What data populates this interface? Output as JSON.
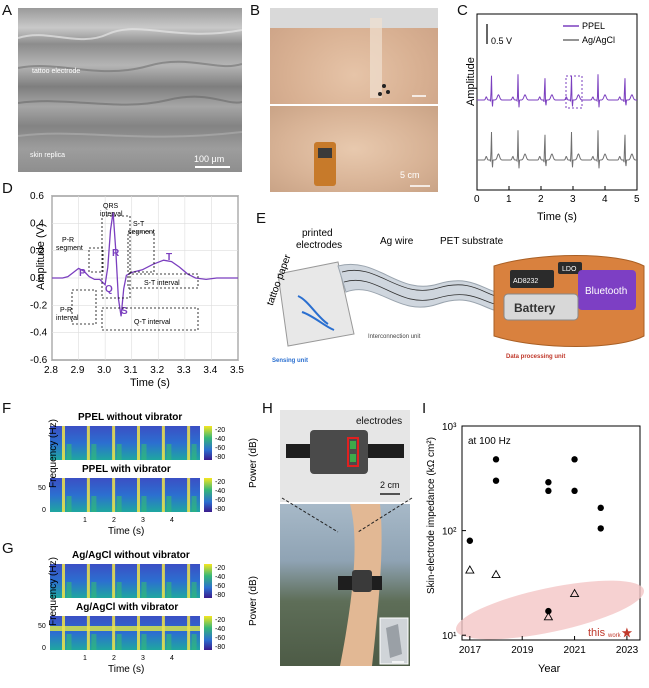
{
  "panels": {
    "A": {
      "label": "A",
      "tattoo_text": "tattoo electrode",
      "skin_text": "skin replica",
      "scale": "100 μm"
    },
    "B": {
      "label": "B",
      "scale": "5 cm"
    },
    "C": {
      "label": "C",
      "scale_text": "0.5 V",
      "ylabel": "Amplitude",
      "xlabel": "Time (s)",
      "legend": [
        "PPEL",
        "Ag/AgCl"
      ],
      "xticks": [
        "0",
        "1",
        "2",
        "3",
        "4",
        "5"
      ]
    },
    "D": {
      "label": "D",
      "ylabel": "Amplitude (V)",
      "xlabel": "Time (s)",
      "xticks": [
        "2.8",
        "2.9",
        "3.0",
        "3.1",
        "3.2",
        "3.3",
        "3.4",
        "3.5"
      ],
      "yticks": [
        "0.6",
        "0.4",
        "0.2",
        "0.0",
        "-0.2",
        "-0.4",
        "-0.6"
      ],
      "wave": {
        "P": "P",
        "Q": "Q",
        "R": "R",
        "S": "S",
        "T": "T"
      },
      "annotations": {
        "qrs1": "QRS",
        "qrs2": "interval",
        "pr1": "P-R",
        "pr2": "segment",
        "st1": "S-T",
        "st2": "segment",
        "stint": "S-T interval",
        "print1": "P-R",
        "print2": "interval",
        "qt": "Q-T interval"
      }
    },
    "E": {
      "label": "E",
      "tattoo_paper": "tattoo paper",
      "printed1": "printed",
      "printed2": "electrodes",
      "ag_wire": "Ag wire",
      "pet": "PET substrate",
      "sensing": "Sensing unit",
      "interconnect": "Interconnection unit",
      "data_unit": "Data processing unit",
      "chip": "AD8232",
      "ldo": "LDO",
      "bluetooth": "Bluetooth",
      "battery": "Battery"
    },
    "F": {
      "label": "F",
      "title1": "PPEL without vibrator",
      "title2": "PPEL with vibrator",
      "ylabel": "Frequency (Hz)",
      "xlabel": "Time (s)",
      "clabel": "Power (dB)",
      "cticks": [
        "-20",
        "-40",
        "-60",
        "-80"
      ],
      "yticks": [
        "50",
        "0"
      ],
      "xticks": [
        "1",
        "2",
        "3",
        "4"
      ]
    },
    "G": {
      "label": "G",
      "title1": "Ag/AgCl without vibrator",
      "title2": "Ag/AgCl with vibrator",
      "ylabel": "Frequency (Hz)",
      "xlabel": "Time (s)",
      "clabel": "Power (dB)",
      "cticks": [
        "-20",
        "-40",
        "-60",
        "-80"
      ],
      "yticks": [
        "50",
        "0"
      ],
      "xticks": [
        "1",
        "2",
        "3",
        "4"
      ]
    },
    "H": {
      "label": "H",
      "electrodes": "electrodes",
      "scale": "2 cm"
    },
    "I": {
      "label": "I",
      "note": "at 100 Hz",
      "ylabel": "Skin-electrode impedance (kΩ cm²)",
      "xlabel": "Year",
      "this": "this",
      "work": "work",
      "xticks": [
        "2017",
        "2019",
        "2021",
        "2023"
      ],
      "yticks": [
        "10³",
        "10²",
        "10¹"
      ]
    }
  },
  "chart_data": [
    {
      "type": "line",
      "panel": "C",
      "xlabel": "Time (s)",
      "ylabel": "Amplitude",
      "xlim": [
        0,
        5
      ],
      "series": [
        {
          "name": "PPEL",
          "color": "#7b3fbf",
          "beats_s": [
            0.45,
            1.28,
            2.12,
            2.95,
            3.78,
            4.62
          ]
        },
        {
          "name": "Ag/AgCl",
          "color": "#707070",
          "beats_s": [
            0.45,
            1.28,
            2.12,
            2.95,
            3.78,
            4.62
          ]
        }
      ]
    },
    {
      "type": "line",
      "panel": "D",
      "xlabel": "Time (s)",
      "ylabel": "Amplitude (V)",
      "xlim": [
        2.8,
        3.5
      ],
      "ylim": [
        -0.6,
        0.6
      ],
      "series": [
        {
          "name": "",
          "color": "#7b3fbf",
          "x": [
            2.8,
            2.84,
            2.86,
            2.88,
            2.9,
            2.92,
            2.94,
            2.96,
            2.98,
            3.0,
            3.01,
            3.02,
            3.03,
            3.04,
            3.05,
            3.06,
            3.07,
            3.08,
            3.1,
            3.14,
            3.18,
            3.22,
            3.25,
            3.28,
            3.31,
            3.34,
            3.38,
            3.42,
            3.46,
            3.5
          ],
          "y": [
            0.0,
            0.0,
            0.01,
            0.04,
            0.07,
            0.05,
            0.01,
            -0.01,
            -0.01,
            -0.05,
            0.08,
            0.35,
            0.48,
            0.2,
            -0.15,
            -0.28,
            -0.08,
            0.02,
            0.04,
            0.06,
            0.1,
            0.13,
            0.12,
            0.08,
            0.03,
            0.0,
            -0.01,
            0.0,
            0.0,
            0.0
          ]
        }
      ]
    },
    {
      "type": "scatter",
      "panel": "I",
      "xlabel": "Year",
      "ylabel": "Skin-electrode impedance (kΩ cm²)",
      "xlim": [
        2016.7,
        2023.5
      ],
      "ylim": [
        9,
        1000
      ],
      "yscale": "log",
      "series": [
        {
          "name": "",
          "marker": "filled-circle",
          "x": [
            2017,
            2018,
            2018,
            2020,
            2020,
            2020,
            2021,
            2021,
            2022,
            2022
          ],
          "y": [
            80,
            480,
            300,
            290,
            240,
            17,
            480,
            240,
            165,
            105
          ]
        },
        {
          "name": "",
          "marker": "open-triangle",
          "x": [
            2017,
            2018,
            2020,
            2021
          ],
          "y": [
            42,
            38,
            15,
            25
          ]
        },
        {
          "name": "this work",
          "marker": "red-star",
          "x": [
            2023
          ],
          "y": [
            10.5
          ]
        }
      ]
    }
  ]
}
